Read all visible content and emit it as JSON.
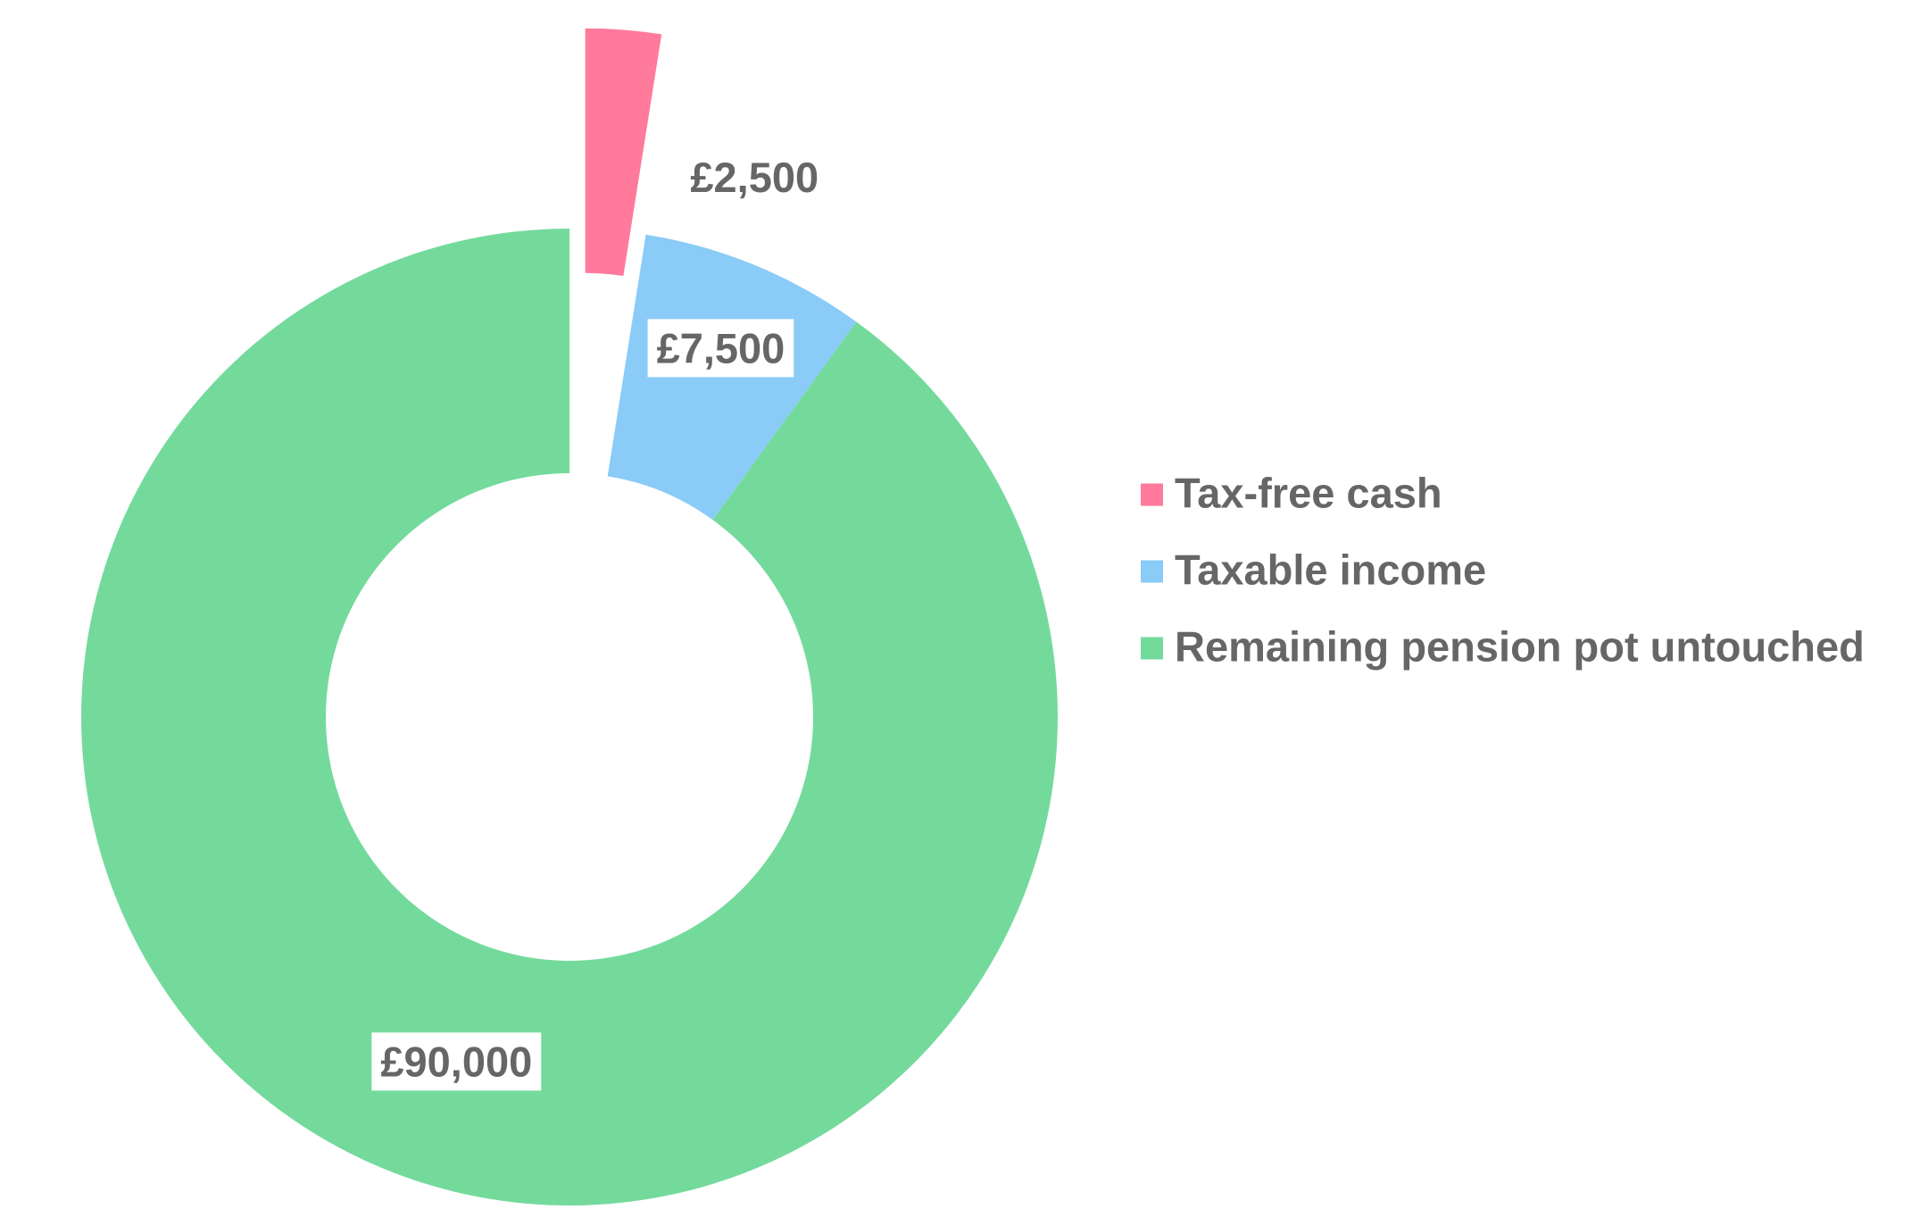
{
  "chart_data": {
    "type": "donut",
    "categories": [
      "Tax-free cash",
      "Taxable income",
      "Remaining pension pot untouched"
    ],
    "values": [
      2500,
      7500,
      90000
    ],
    "value_labels": [
      "£2,500",
      "£7,500",
      "£90,000"
    ],
    "colors": [
      "#ff7a9b",
      "#8acbf8",
      "#74da9c"
    ],
    "legend": "right"
  }
}
